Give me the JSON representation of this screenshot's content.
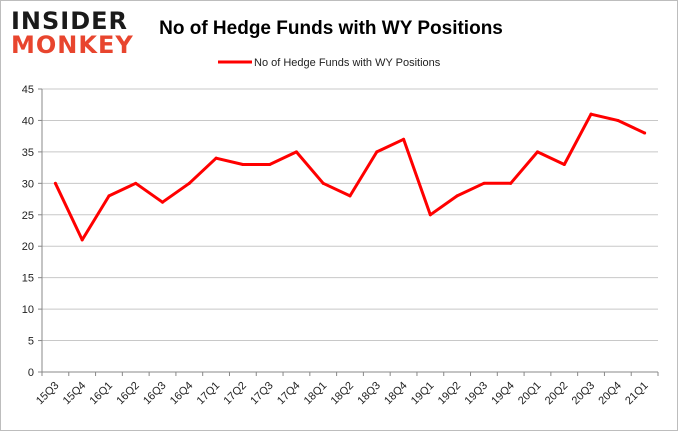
{
  "logo": {
    "line1": "INSIDER",
    "line2": "MONKEY",
    "color1": "#1a1a1a",
    "color2": "#e8452e"
  },
  "chart_data": {
    "type": "line",
    "title": "No of Hedge Funds with WY Positions",
    "xlabel": "",
    "ylabel": "",
    "categories": [
      "15Q3",
      "15Q4",
      "16Q1",
      "16Q2",
      "16Q3",
      "16Q4",
      "17Q1",
      "17Q2",
      "17Q3",
      "17Q4",
      "18Q1",
      "18Q2",
      "18Q3",
      "18Q4",
      "19Q1",
      "19Q2",
      "19Q3",
      "19Q4",
      "20Q1",
      "20Q2",
      "20Q3",
      "20Q4",
      "21Q1"
    ],
    "series": [
      {
        "name": "No of Hedge Funds with WY Positions",
        "color": "#ff0000",
        "values": [
          30,
          21,
          28,
          30,
          27,
          30,
          34,
          33,
          33,
          35,
          30,
          28,
          35,
          37,
          25,
          28,
          30,
          30,
          35,
          33,
          41,
          40,
          38
        ]
      }
    ],
    "ylim": [
      0,
      45
    ],
    "yticks": [
      0,
      5,
      10,
      15,
      20,
      25,
      30,
      35,
      40,
      45
    ],
    "grid": true,
    "legend": "top-center"
  }
}
